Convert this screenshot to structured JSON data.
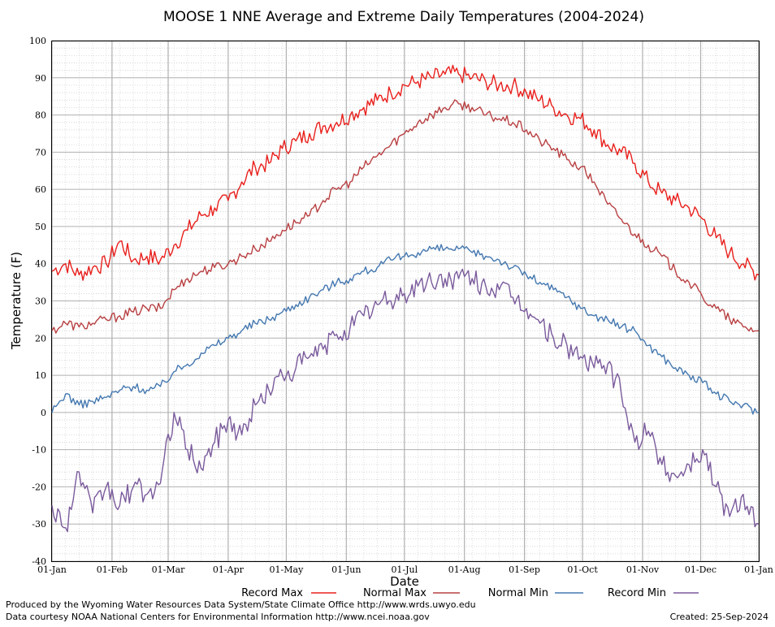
{
  "chart_data": {
    "type": "line",
    "title": "MOOSE 1 NNE Average and Extreme Daily Temperatures (2004-2024)",
    "xlabel": "Date",
    "ylabel": "Temperature (F)",
    "ylim": [
      -40,
      100
    ],
    "yticks": [
      "100",
      "90",
      "80",
      "70",
      "60",
      "50",
      "40",
      "30",
      "20",
      "10",
      "0",
      "-10",
      "-20",
      "-30",
      "-40"
    ],
    "xticks": [
      "01-Jan",
      "01-Feb",
      "01-Mar",
      "01-Apr",
      "01-May",
      "01-Jun",
      "01-Jul",
      "01-Aug",
      "01-Sep",
      "01-Oct",
      "01-Nov",
      "01-Dec",
      "01-Jan"
    ],
    "xtick_days": [
      1,
      32,
      61,
      92,
      122,
      153,
      183,
      214,
      245,
      275,
      306,
      336,
      366
    ],
    "grid": true,
    "legend_position": "bottom",
    "series": [
      {
        "name": "Record Max",
        "color": "#e8201c",
        "x": [
          1,
          8,
          15,
          22,
          29,
          36,
          43,
          50,
          57,
          64,
          71,
          78,
          85,
          92,
          99,
          106,
          113,
          120,
          127,
          134,
          141,
          148,
          155,
          162,
          169,
          176,
          183,
          190,
          197,
          204,
          211,
          218,
          225,
          232,
          239,
          246,
          253,
          260,
          267,
          274,
          281,
          288,
          295,
          302,
          309,
          316,
          323,
          330,
          337,
          344,
          351,
          358,
          366
        ],
        "y": [
          38,
          40,
          37,
          39,
          40,
          46,
          41,
          42,
          41,
          45,
          49,
          53,
          55,
          57,
          62,
          66,
          67,
          71,
          73,
          75,
          77,
          78,
          80,
          82,
          84,
          86,
          88,
          89,
          90,
          91,
          91,
          90,
          89,
          88,
          88,
          86,
          84,
          82,
          80,
          79,
          76,
          72,
          70,
          67,
          62,
          59,
          57,
          55,
          52,
          47,
          43,
          40,
          37
        ]
      },
      {
        "name": "Normal Max",
        "color": "#b84042",
        "x": [
          1,
          8,
          15,
          22,
          29,
          36,
          43,
          50,
          57,
          64,
          71,
          78,
          85,
          92,
          99,
          106,
          113,
          120,
          127,
          134,
          141,
          148,
          155,
          162,
          169,
          176,
          183,
          190,
          197,
          204,
          211,
          218,
          225,
          232,
          239,
          246,
          253,
          260,
          267,
          274,
          281,
          288,
          295,
          302,
          309,
          316,
          323,
          330,
          337,
          344,
          351,
          358,
          366
        ],
        "y": [
          22,
          24,
          23,
          24,
          25,
          26,
          27,
          28,
          28,
          33,
          36,
          38,
          39,
          40,
          42,
          44,
          46,
          49,
          51,
          53,
          57,
          60,
          62,
          66,
          69,
          72,
          75,
          78,
          80,
          82,
          83,
          82,
          80,
          79,
          78,
          76,
          73,
          71,
          68,
          66,
          62,
          56,
          52,
          48,
          45,
          42,
          38,
          35,
          31,
          28,
          25,
          23,
          22
        ]
      },
      {
        "name": "Normal Min",
        "color": "#4478b0",
        "x": [
          1,
          8,
          15,
          22,
          29,
          36,
          43,
          50,
          57,
          64,
          71,
          78,
          85,
          92,
          99,
          106,
          113,
          120,
          127,
          134,
          141,
          148,
          155,
          162,
          169,
          176,
          183,
          190,
          197,
          204,
          211,
          218,
          225,
          232,
          239,
          246,
          253,
          260,
          267,
          274,
          281,
          288,
          295,
          302,
          309,
          316,
          323,
          330,
          337,
          344,
          351,
          358,
          366
        ],
        "y": [
          0,
          5,
          2,
          3,
          4,
          6,
          7,
          6,
          7,
          11,
          13,
          16,
          18,
          20,
          22,
          24,
          25,
          27,
          29,
          31,
          33,
          35,
          36,
          38,
          39,
          41,
          42,
          43,
          44,
          44,
          44,
          43,
          42,
          41,
          39,
          37,
          35,
          33,
          31,
          28,
          26,
          25,
          23,
          22,
          18,
          15,
          12,
          10,
          8,
          5,
          3,
          2,
          0
        ]
      },
      {
        "name": "Record Min",
        "color": "#7a5a9c",
        "x": [
          1,
          8,
          15,
          22,
          29,
          36,
          43,
          50,
          57,
          64,
          71,
          78,
          85,
          92,
          99,
          106,
          113,
          120,
          127,
          134,
          141,
          148,
          155,
          162,
          169,
          176,
          183,
          190,
          197,
          204,
          211,
          218,
          225,
          232,
          239,
          246,
          253,
          260,
          267,
          274,
          281,
          288,
          295,
          302,
          309,
          316,
          323,
          330,
          337,
          344,
          351,
          358,
          366
        ],
        "y": [
          -25,
          -31,
          -16,
          -27,
          -20,
          -25,
          -20,
          -22,
          -19,
          0,
          -10,
          -15,
          -8,
          -2,
          -6,
          2,
          6,
          10,
          12,
          15,
          17,
          21,
          23,
          26,
          29,
          30,
          32,
          34,
          35,
          36,
          36,
          36,
          34,
          33,
          31,
          28,
          24,
          20,
          18,
          15,
          12,
          13,
          5,
          -8,
          -5,
          -14,
          -17,
          -14,
          -10,
          -20,
          -28,
          -22,
          -30
        ]
      }
    ]
  },
  "footer": {
    "line1": "Produced by the Wyoming Water Resources Data System/State Climate Office http://www.wrds.uwyo.edu",
    "line2": "Data courtesy NOAA National Centers for Environmental Information http://www.ncei.noaa.gov",
    "created": "Created: 25-Sep-2024"
  }
}
